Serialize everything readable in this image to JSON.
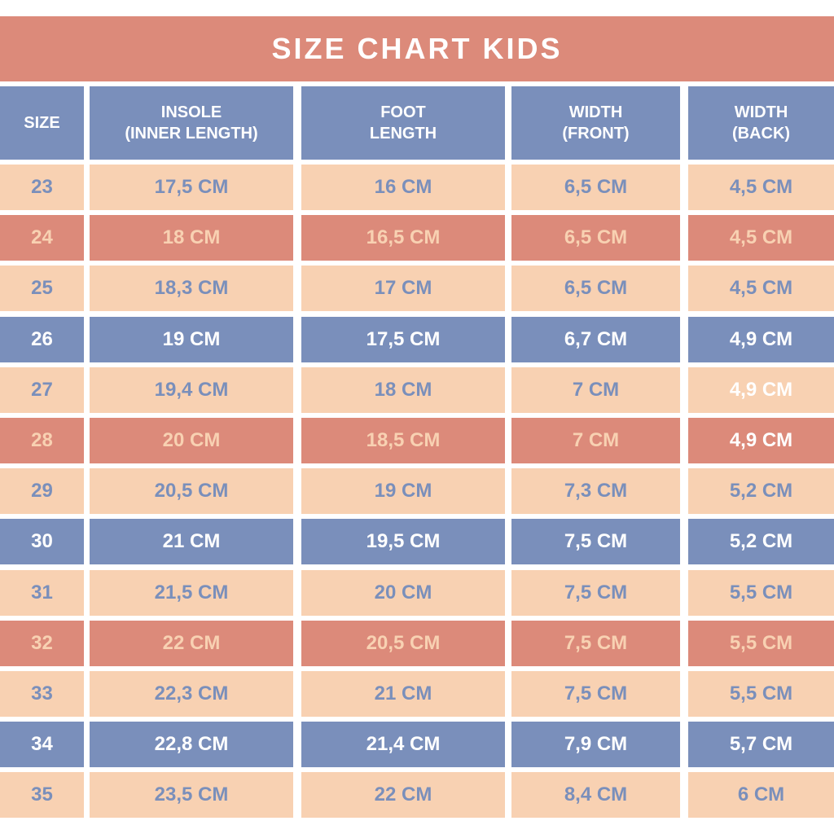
{
  "title": "SIZE CHART KIDS",
  "headers": [
    "SIZE",
    "INSOLE\n(INNER LENGTH)",
    "FOOT\nLENGTH",
    "WIDTH\n(FRONT)",
    "WIDTH\n(BACK)"
  ],
  "rows": [
    {
      "style": "peach",
      "cells": [
        "23",
        "17,5 CM",
        "16 CM",
        "6,5 CM",
        "4,5 CM"
      ]
    },
    {
      "style": "salmon",
      "cells": [
        "24",
        "18 CM",
        "16,5 CM",
        "6,5 CM",
        "4,5 CM"
      ]
    },
    {
      "style": "peach",
      "cells": [
        "25",
        "18,3 CM",
        "17 CM",
        "6,5 CM",
        "4,5 CM"
      ]
    },
    {
      "style": "blue",
      "cells": [
        "26",
        "19 CM",
        "17,5 CM",
        "6,7 CM",
        "4,9 CM"
      ]
    },
    {
      "style": "peach",
      "cells": [
        "27",
        "19,4 CM",
        "18 CM",
        "7 CM",
        "4,9 CM"
      ],
      "white_last": true
    },
    {
      "style": "salmon",
      "cells": [
        "28",
        "20 CM",
        "18,5 CM",
        "7 CM",
        "4,9 CM"
      ],
      "white_last": true
    },
    {
      "style": "peach",
      "cells": [
        "29",
        "20,5 CM",
        "19 CM",
        "7,3 CM",
        "5,2 CM"
      ]
    },
    {
      "style": "blue",
      "cells": [
        "30",
        "21 CM",
        "19,5 CM",
        "7,5 CM",
        "5,2 CM"
      ]
    },
    {
      "style": "peach",
      "cells": [
        "31",
        "21,5 CM",
        "20 CM",
        "7,5 CM",
        "5,5 CM"
      ]
    },
    {
      "style": "salmon",
      "cells": [
        "32",
        "22 CM",
        "20,5 CM",
        "7,5 CM",
        "5,5 CM"
      ]
    },
    {
      "style": "peach",
      "cells": [
        "33",
        "22,3 CM",
        "21 CM",
        "7,5 CM",
        "5,5 CM"
      ]
    },
    {
      "style": "blue",
      "cells": [
        "34",
        "22,8 CM",
        "21,4 CM",
        "7,9 CM",
        "5,7 CM"
      ]
    },
    {
      "style": "peach",
      "cells": [
        "35",
        "23,5 CM",
        "22 CM",
        "8,4 CM",
        "6 CM"
      ]
    }
  ],
  "colors": {
    "salmon": "#dc8a7a",
    "peach": "#f8d1b2",
    "blue": "#7a8fbb",
    "white": "#ffffff"
  }
}
